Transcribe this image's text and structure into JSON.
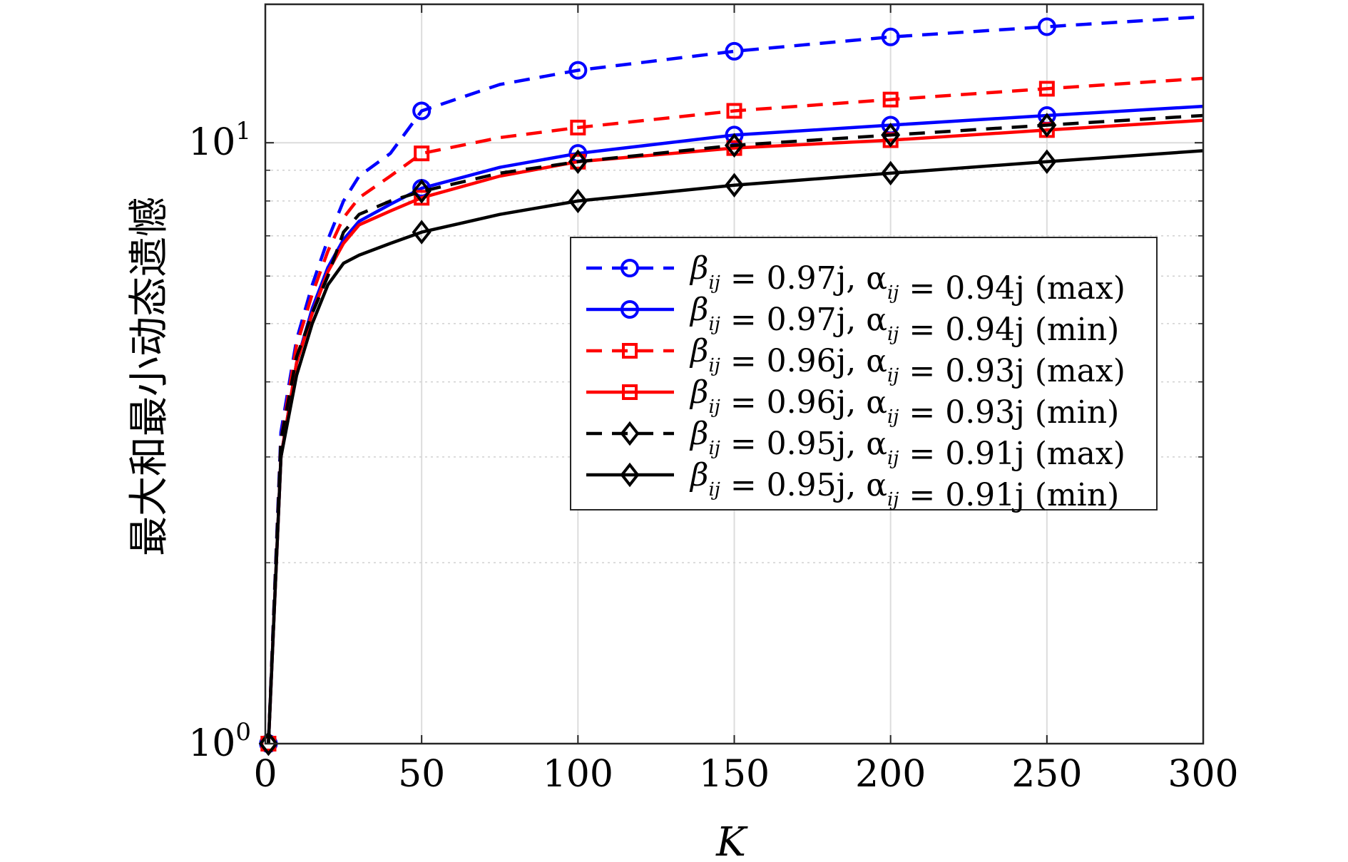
{
  "chart_data": {
    "type": "line",
    "xlabel": "K",
    "ylabel": "最大和最小动态遗憾",
    "xlim": [
      0,
      300
    ],
    "ylim": [
      1,
      17
    ],
    "yscale": "log",
    "x_ticks": [
      "0",
      "50",
      "100",
      "150",
      "200",
      "250",
      "300"
    ],
    "y_ticks": [
      {
        "value": 1,
        "base": "10",
        "exp": "0"
      },
      {
        "value": 10,
        "base": "10",
        "exp": "1"
      }
    ],
    "grid": true,
    "legend_position": "center-right",
    "series": [
      {
        "name": "β_ij = 0.97j, α_ij = 0.94j (max)",
        "color": "#0000ff",
        "dash": "dashed",
        "marker": "circle",
        "x": [
          1,
          5,
          10,
          15,
          20,
          25,
          30,
          40,
          50,
          75,
          100,
          150,
          200,
          250,
          300
        ],
        "y": [
          1,
          3.3,
          4.7,
          5.8,
          6.9,
          8.0,
          8.8,
          9.6,
          11.3,
          12.5,
          13.2,
          14.2,
          15.0,
          15.6,
          16.2
        ]
      },
      {
        "name": "β_ij = 0.97j, α_ij = 0.94j (min)",
        "color": "#0000ff",
        "dash": "solid",
        "marker": "circle",
        "x": [
          1,
          5,
          10,
          15,
          20,
          25,
          30,
          40,
          50,
          75,
          100,
          150,
          200,
          250,
          300
        ],
        "y": [
          1,
          3.0,
          4.3,
          5.3,
          6.2,
          6.9,
          7.4,
          7.9,
          8.4,
          9.1,
          9.6,
          10.3,
          10.7,
          11.1,
          11.5
        ]
      },
      {
        "name": "β_ij = 0.96j, α_ij = 0.93j (max)",
        "color": "#ff0000",
        "dash": "dashed",
        "marker": "square",
        "x": [
          1,
          5,
          10,
          15,
          20,
          25,
          30,
          40,
          50,
          75,
          100,
          150,
          200,
          250,
          300
        ],
        "y": [
          1,
          3.2,
          4.6,
          5.6,
          6.6,
          7.5,
          8.1,
          8.8,
          9.6,
          10.2,
          10.6,
          11.3,
          11.8,
          12.3,
          12.8
        ]
      },
      {
        "name": "β_ij = 0.96j, α_ij = 0.93j (min)",
        "color": "#ff0000",
        "dash": "solid",
        "marker": "square",
        "x": [
          1,
          5,
          10,
          15,
          20,
          25,
          30,
          40,
          50,
          75,
          100,
          150,
          200,
          250,
          300
        ],
        "y": [
          1,
          3.0,
          4.3,
          5.2,
          6.1,
          6.8,
          7.3,
          7.7,
          8.1,
          8.8,
          9.3,
          9.8,
          10.1,
          10.5,
          10.9
        ]
      },
      {
        "name": "β_ij = 0.95j, α_ij = 0.91j (max)",
        "color": "#000000",
        "dash": "dashed",
        "marker": "diamond",
        "x": [
          1,
          5,
          10,
          15,
          20,
          25,
          30,
          40,
          50,
          75,
          100,
          150,
          200,
          250,
          300
        ],
        "y": [
          1,
          3.2,
          4.4,
          5.2,
          6.0,
          7.1,
          7.6,
          8.0,
          8.3,
          8.9,
          9.3,
          9.9,
          10.3,
          10.7,
          11.1
        ]
      },
      {
        "name": "β_ij = 0.95j, α_ij = 0.91j (min)",
        "color": "#000000",
        "dash": "solid",
        "marker": "diamond",
        "x": [
          1,
          5,
          10,
          15,
          20,
          25,
          30,
          40,
          50,
          75,
          100,
          150,
          200,
          250,
          300
        ],
        "y": [
          1,
          3.0,
          4.1,
          5.0,
          5.8,
          6.3,
          6.5,
          6.8,
          7.1,
          7.6,
          8.0,
          8.5,
          8.9,
          9.3,
          9.7
        ]
      }
    ],
    "legend": [
      {
        "prefix": "β",
        "sub1": "ij",
        "mid": " = 0.97j, α",
        "sub2": "ij",
        "suffix": " = 0.94j (max)"
      },
      {
        "prefix": "β",
        "sub1": "ij",
        "mid": " = 0.97j, α",
        "sub2": "ij",
        "suffix": " = 0.94j (min)"
      },
      {
        "prefix": "β",
        "sub1": "ij",
        "mid": " = 0.96j, α",
        "sub2": "ij",
        "suffix": " = 0.93j (max)"
      },
      {
        "prefix": "β",
        "sub1": "ij",
        "mid": " = 0.96j, α",
        "sub2": "ij",
        "suffix": " = 0.93j (min)"
      },
      {
        "prefix": "β",
        "sub1": "ij",
        "mid": " = 0.95j, α",
        "sub2": "ij",
        "suffix": " = 0.91j (max)"
      },
      {
        "prefix": "β",
        "sub1": "ij",
        "mid": " = 0.95j, α",
        "sub2": "ij",
        "suffix": " = 0.91j (min)"
      }
    ]
  }
}
